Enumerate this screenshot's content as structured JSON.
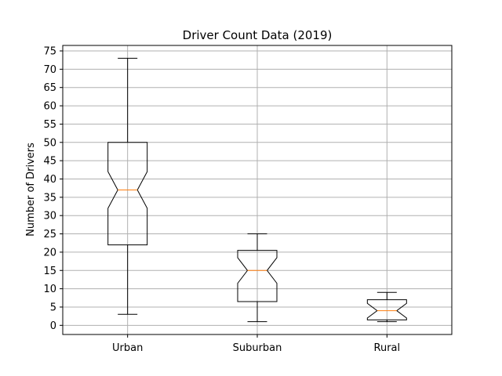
{
  "chart_data": {
    "type": "boxplot",
    "title": "Driver Count Data (2019)",
    "xlabel": "",
    "ylabel": "Number of Drivers",
    "ylim": [
      -2.5,
      76.5
    ],
    "yticks": [
      0,
      5,
      10,
      15,
      20,
      25,
      30,
      35,
      40,
      45,
      50,
      55,
      60,
      65,
      70,
      75
    ],
    "grid": true,
    "notched": true,
    "categories": [
      "Urban",
      "Suburban",
      "Rural"
    ],
    "boxes": [
      {
        "label": "Urban",
        "whisker_low": 3,
        "q1": 22,
        "median": 37,
        "q3": 50,
        "whisker_high": 73,
        "notch_low": 32,
        "notch_high": 42
      },
      {
        "label": "Suburban",
        "whisker_low": 1,
        "q1": 6.5,
        "median": 15,
        "q3": 20.5,
        "whisker_high": 25,
        "notch_low": 11.5,
        "notch_high": 18.5
      },
      {
        "label": "Rural",
        "whisker_low": 1,
        "q1": 1.5,
        "median": 4,
        "q3": 7,
        "whisker_high": 9,
        "notch_low": 2,
        "notch_high": 6
      }
    ],
    "colors": {
      "box": "#000000",
      "median": "#ff7f0e",
      "grid": "#b0b0b0"
    }
  }
}
